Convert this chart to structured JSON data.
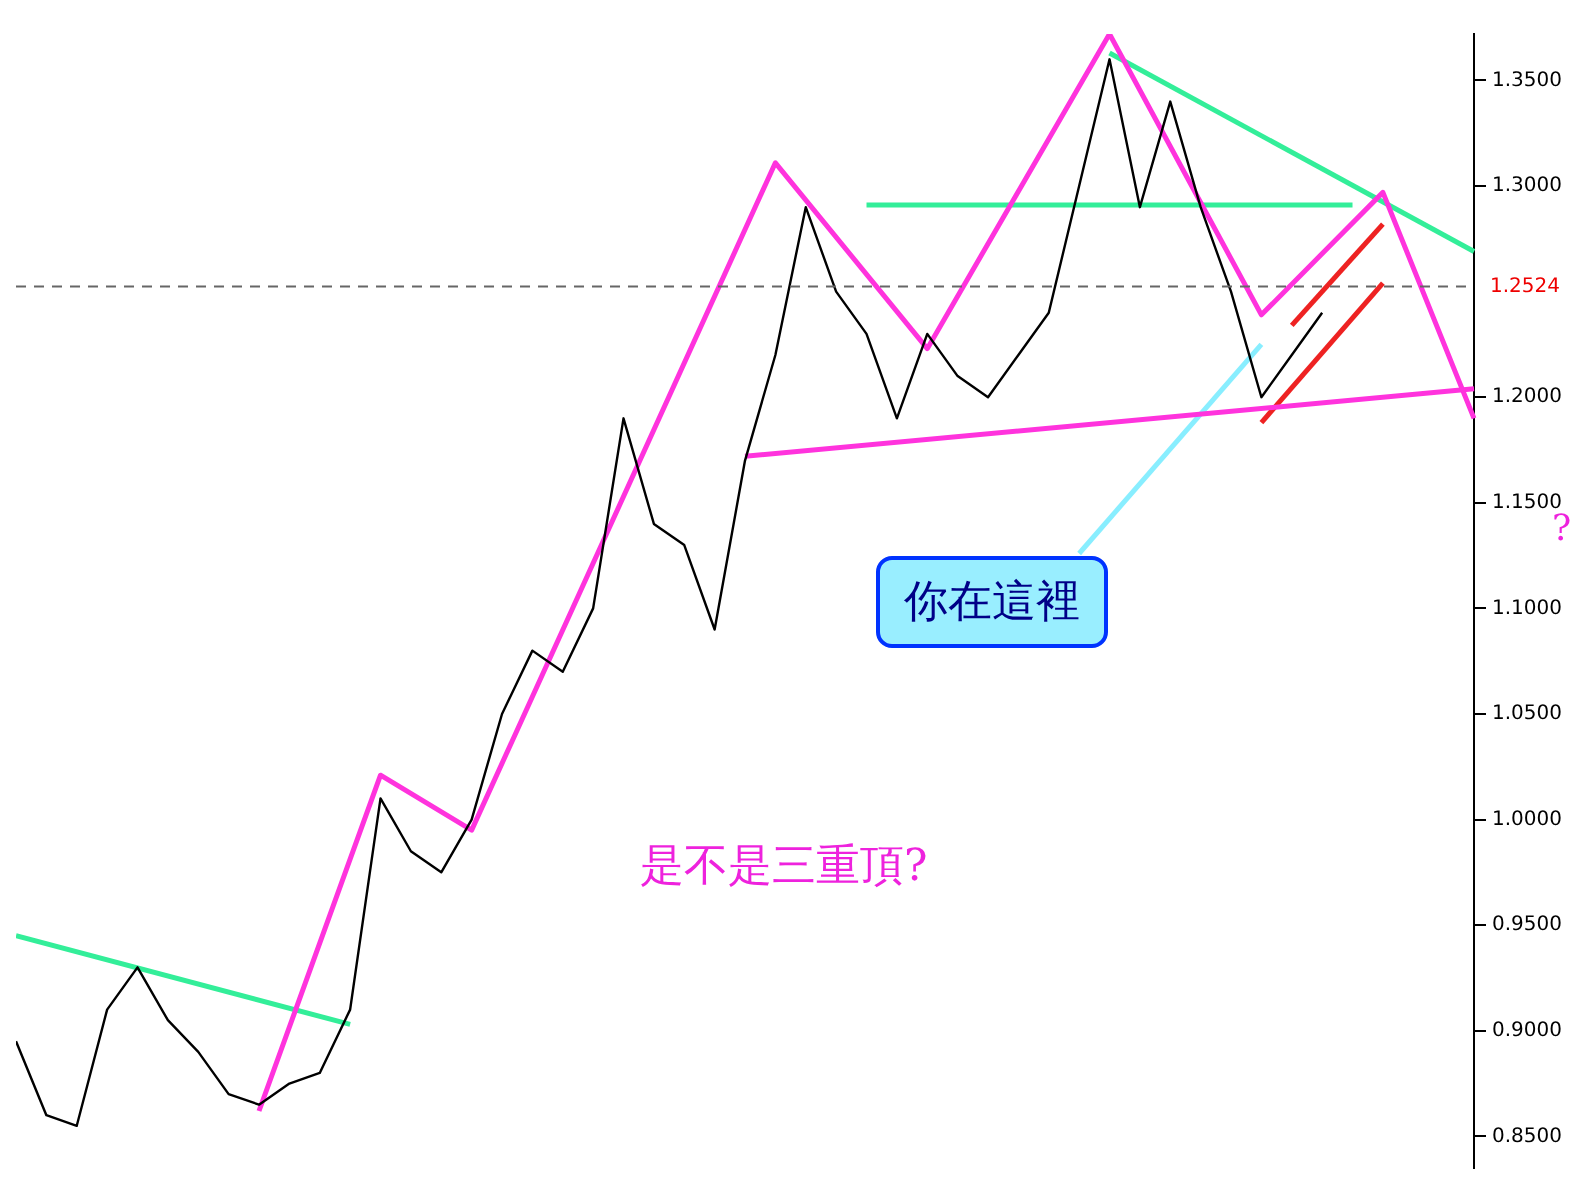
{
  "chart_data": {
    "type": "line",
    "categories": [
      null,
      null,
      null,
      null,
      null,
      null,
      null,
      null,
      null,
      null,
      null,
      null,
      null,
      null,
      null,
      null,
      null,
      null,
      null,
      null,
      null,
      null,
      null,
      null,
      null,
      null,
      null,
      null,
      null,
      null,
      null,
      null,
      null,
      null,
      null,
      null,
      null,
      null,
      null,
      null,
      null,
      null,
      null,
      null,
      null,
      null,
      null,
      null,
      null
    ],
    "series": [
      {
        "color": "#000000",
        "values": [
          0.895,
          0.86,
          0.855,
          0.91,
          0.93,
          0.905,
          0.89,
          0.87,
          0.865,
          0.875,
          0.88,
          0.91,
          1.01,
          0.985,
          0.975,
          1.0,
          1.05,
          1.08,
          1.07,
          1.1,
          1.19,
          1.14,
          1.13,
          1.09,
          1.17,
          1.22,
          1.29,
          1.25,
          1.23,
          1.19,
          1.23,
          1.21,
          1.2,
          1.22,
          1.24,
          1.3,
          1.36,
          1.29,
          1.34,
          1.29,
          1.25,
          1.2,
          1.22,
          1.24,
          null,
          null,
          null,
          null,
          null
        ]
      },
      {
        "color": "#ff33dd",
        "values": [
          null,
          null,
          null,
          null,
          null,
          null,
          null,
          null,
          0.862,
          null,
          null,
          null,
          1.021,
          null,
          null,
          0.995,
          null,
          null,
          null,
          null,
          null,
          null,
          null,
          null,
          null,
          1.311,
          null,
          null,
          null,
          null,
          1.223,
          null,
          null,
          null,
          null,
          null,
          1.372,
          null,
          null,
          null,
          null,
          1.239,
          null,
          null,
          null,
          1.297,
          null,
          null,
          1.19
        ]
      },
      {
        "color": "#33ee99",
        "values": [
          0.945,
          null,
          null,
          null,
          null,
          null,
          null,
          null,
          null,
          null,
          null,
          0.903,
          null,
          null,
          null,
          null,
          null,
          null,
          null,
          null,
          null,
          null,
          null,
          null,
          null,
          null,
          null,
          null,
          null,
          null,
          null,
          null,
          null,
          null,
          null,
          null,
          null,
          null,
          null,
          null,
          null,
          null,
          null,
          null,
          null,
          null,
          null,
          null,
          null
        ]
      },
      {
        "color": "#33ee99",
        "values": [
          null,
          null,
          null,
          null,
          null,
          null,
          null,
          null,
          null,
          null,
          null,
          null,
          null,
          null,
          null,
          null,
          null,
          null,
          null,
          null,
          null,
          null,
          null,
          null,
          null,
          null,
          null,
          null,
          1.291,
          null,
          null,
          null,
          null,
          null,
          null,
          null,
          null,
          null,
          null,
          null,
          null,
          null,
          null,
          null,
          1.291,
          null,
          null,
          null,
          null
        ]
      },
      {
        "color": "#33ee99",
        "values": [
          null,
          null,
          null,
          null,
          null,
          null,
          null,
          null,
          null,
          null,
          null,
          null,
          null,
          null,
          null,
          null,
          null,
          null,
          null,
          null,
          null,
          null,
          null,
          null,
          null,
          null,
          null,
          null,
          null,
          null,
          null,
          null,
          null,
          null,
          null,
          null,
          1.363,
          null,
          null,
          null,
          null,
          null,
          null,
          null,
          null,
          null,
          null,
          null,
          1.269
        ]
      },
      {
        "color": "#ff33dd",
        "values": [
          null,
          null,
          null,
          null,
          null,
          null,
          null,
          null,
          null,
          null,
          null,
          null,
          null,
          null,
          null,
          null,
          null,
          null,
          null,
          null,
          null,
          null,
          null,
          null,
          1.172,
          null,
          null,
          null,
          null,
          null,
          null,
          null,
          null,
          null,
          null,
          null,
          null,
          null,
          null,
          null,
          null,
          null,
          null,
          null,
          null,
          null,
          null,
          null,
          1.204
        ]
      },
      {
        "color": "#88eeff",
        "values": [
          null,
          null,
          null,
          null,
          null,
          null,
          null,
          null,
          null,
          null,
          null,
          null,
          null,
          null,
          null,
          null,
          null,
          null,
          null,
          null,
          null,
          null,
          null,
          null,
          null,
          null,
          null,
          null,
          null,
          null,
          null,
          null,
          null,
          null,
          null,
          1.126,
          null,
          null,
          null,
          null,
          null,
          1.225,
          null,
          null,
          null,
          null,
          null,
          null,
          null
        ]
      },
      {
        "color": "#ee2222",
        "values": [
          null,
          null,
          null,
          null,
          null,
          null,
          null,
          null,
          null,
          null,
          null,
          null,
          null,
          null,
          null,
          null,
          null,
          null,
          null,
          null,
          null,
          null,
          null,
          null,
          null,
          null,
          null,
          null,
          null,
          null,
          null,
          null,
          null,
          null,
          null,
          null,
          null,
          null,
          null,
          null,
          null,
          1.188,
          null,
          null,
          null,
          1.254,
          null,
          null,
          null
        ]
      },
      {
        "color": "#ee2222",
        "values": [
          null,
          null,
          null,
          null,
          null,
          null,
          null,
          null,
          null,
          null,
          null,
          null,
          null,
          null,
          null,
          null,
          null,
          null,
          null,
          null,
          null,
          null,
          null,
          null,
          null,
          null,
          null,
          null,
          null,
          null,
          null,
          null,
          null,
          null,
          null,
          null,
          null,
          null,
          null,
          null,
          null,
          null,
          1.234,
          null,
          null,
          1.282,
          null,
          null,
          null
        ]
      }
    ],
    "ylim": [
      0.835,
      1.372
    ],
    "yticks": [
      {
        "value": 0.85,
        "label": "0.8500"
      },
      {
        "value": 0.9,
        "label": "0.9000"
      },
      {
        "value": 0.95,
        "label": "0.9500"
      },
      {
        "value": 1.0,
        "label": "1.0000"
      },
      {
        "value": 1.05,
        "label": "1.0500"
      },
      {
        "value": 1.1,
        "label": "1.1000"
      },
      {
        "value": 1.15,
        "label": "1.1500"
      },
      {
        "value": 1.2,
        "label": "1.2000"
      },
      {
        "value": 1.3,
        "label": "1.3000"
      },
      {
        "value": 1.35,
        "label": "1.3500"
      }
    ],
    "tick_labels": "y",
    "grid": false,
    "legend": false,
    "marker": "none",
    "ref_lines": [
      {
        "axis": "y",
        "value": 1.2524,
        "label": "1.2524",
        "color": "#666666",
        "line_style": "dashed"
      }
    ],
    "annotations": [
      "你在這裡",
      "是不是三重頂?",
      "?"
    ]
  }
}
